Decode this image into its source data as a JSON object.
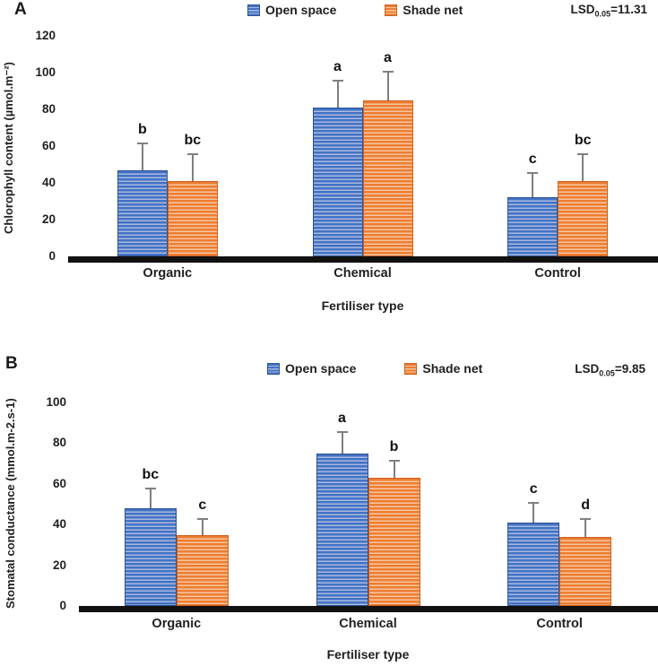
{
  "chart_data": [
    {
      "type": "bar",
      "panel": "A",
      "categories": [
        "Organic",
        "Chemical",
        "Control"
      ],
      "series": [
        {
          "name": "Open space",
          "color": "#4472C4",
          "stripe_color": "#a6b9e0",
          "values": [
            47,
            81,
            32
          ],
          "error_tops": [
            62,
            96,
            46
          ],
          "sig_letters": [
            "b",
            "a",
            "c"
          ]
        },
        {
          "name": "Shade net",
          "color": "#ED7D31",
          "stripe_color": "#f7c5a0",
          "values": [
            41,
            85,
            41
          ],
          "error_tops": [
            56,
            101,
            56
          ],
          "sig_letters": [
            "bc",
            "a",
            "bc"
          ]
        }
      ],
      "xlabel": "Fertiliser type",
      "ylabel": "Chlorophyll content (µmol.m⁻²)",
      "ylim": [
        0,
        120
      ],
      "ytick_step": 20,
      "grid": false,
      "legend_position": "top-center",
      "lsd": {
        "prefix": "LSD",
        "sub": "0.05",
        "rest": "=11.31"
      }
    },
    {
      "type": "bar",
      "panel": "B",
      "categories": [
        "Organic",
        "Chemical",
        "Control"
      ],
      "series": [
        {
          "name": "Open space",
          "color": "#4472C4",
          "stripe_color": "#a6b9e0",
          "values": [
            48,
            75,
            41
          ],
          "error_tops": [
            58,
            86,
            51
          ],
          "sig_letters": [
            "bc",
            "a",
            "c"
          ]
        },
        {
          "name": "Shade net",
          "color": "#ED7D31",
          "stripe_color": "#f7c5a0",
          "values": [
            35,
            63,
            34
          ],
          "error_tops": [
            43,
            72,
            43
          ],
          "sig_letters": [
            "c",
            "b",
            "d"
          ]
        }
      ],
      "xlabel": "Fertiliser type",
      "ylabel": "Stomatal conductance (mmol.m-2.s-1)",
      "ylim": [
        0,
        100
      ],
      "ytick_step": 20,
      "grid": false,
      "legend_position": "top-center",
      "lsd": {
        "prefix": "LSD",
        "sub": "0.05",
        "rest": "=9.85"
      }
    }
  ]
}
